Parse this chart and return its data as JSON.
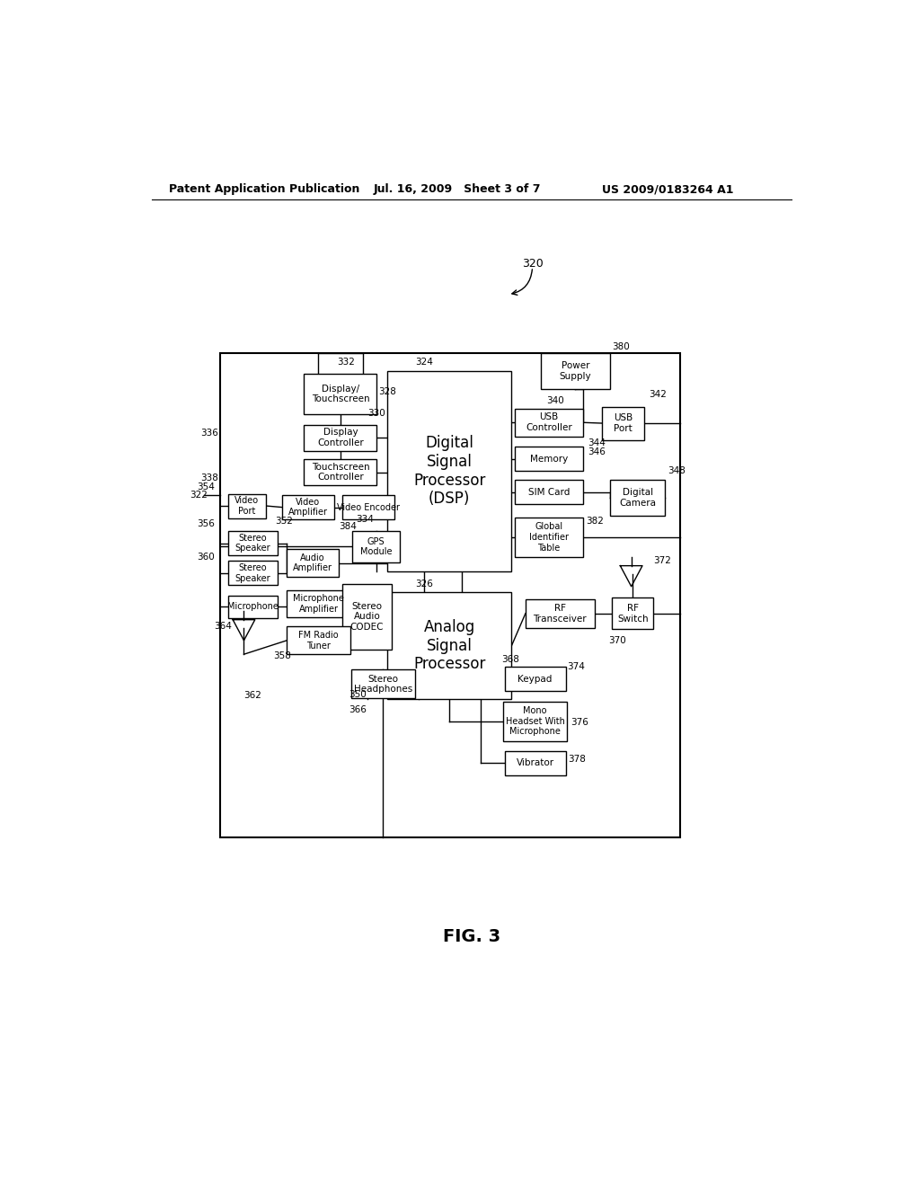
{
  "title_left": "Patent Application Publication",
  "title_mid": "Jul. 16, 2009   Sheet 3 of 7",
  "title_right": "US 2009/0183264 A1",
  "fig_label": "FIG. 3",
  "background": "#ffffff"
}
